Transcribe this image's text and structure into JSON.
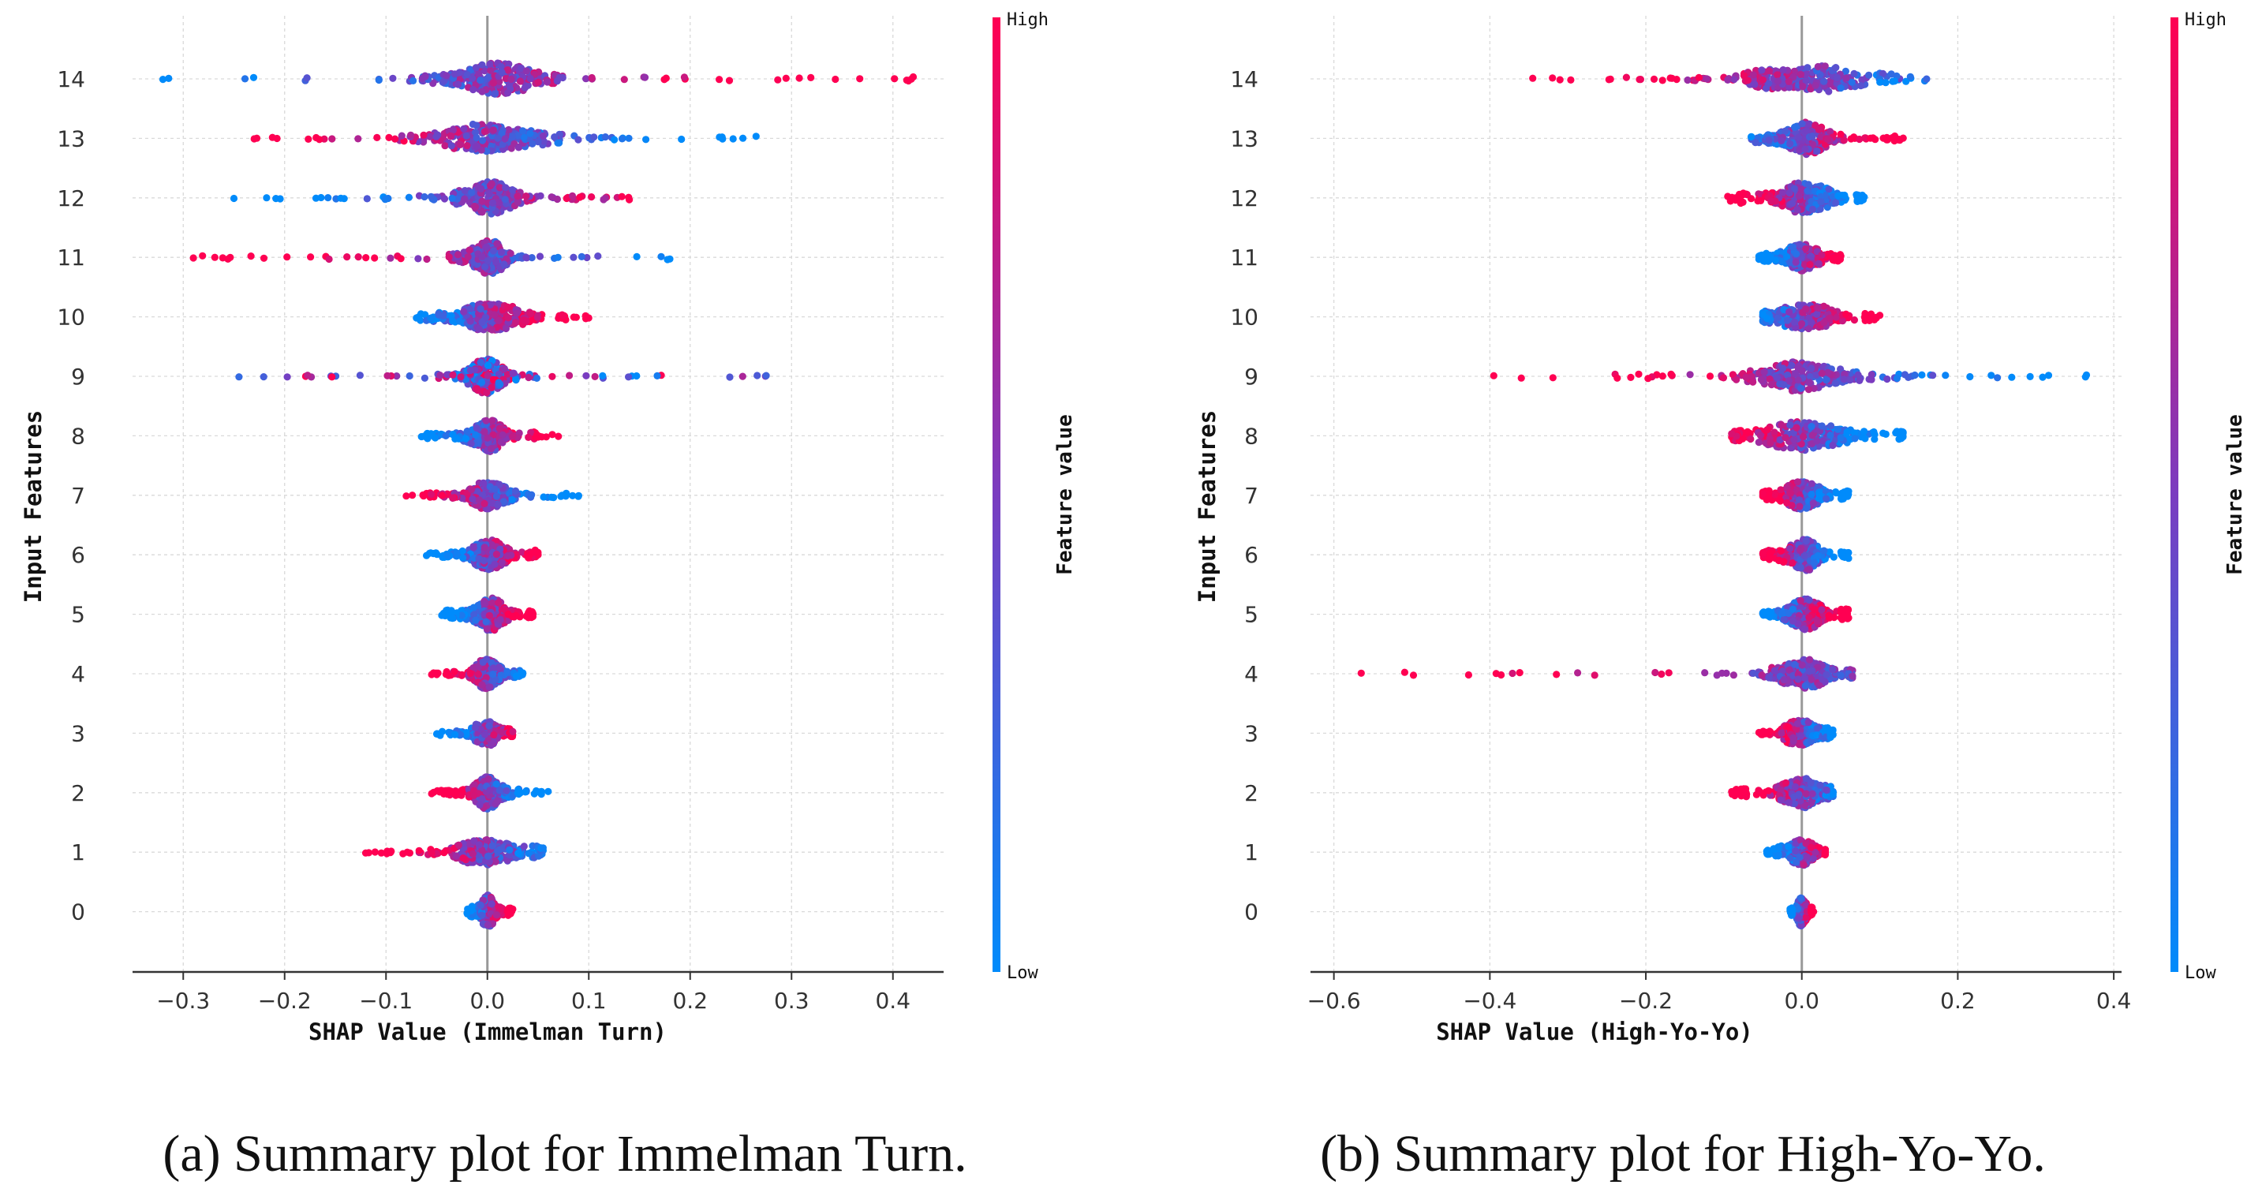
{
  "chart_data": [
    {
      "type": "scatter",
      "subtype": "shap-beeswarm-summary",
      "caption_letter": "(a)",
      "caption_rest": " Summary plot for Immelman Turn.",
      "xlabel": "SHAP Value (Immelman Turn)",
      "ylabel": "Input Features",
      "xlim": [
        -0.35,
        0.45
      ],
      "xticks": [
        -0.3,
        -0.2,
        -0.1,
        0.0,
        0.1,
        0.2,
        0.3,
        0.4
      ],
      "xtick_labels": [
        "−0.3",
        "−0.2",
        "−0.1",
        "0.0",
        "0.1",
        "0.2",
        "0.3",
        "0.4"
      ],
      "features": [
        "14",
        "13",
        "12",
        "11",
        "10",
        "9",
        "8",
        "7",
        "6",
        "5",
        "4",
        "3",
        "2",
        "1",
        "0"
      ],
      "grid": true,
      "colorbar": {
        "title": "Feature value",
        "high": "High",
        "low": "Low",
        "high_color": "#ff0052",
        "low_color": "#008bfb"
      },
      "feature_spread": [
        {
          "feature": "14",
          "min": -0.32,
          "max": 0.42,
          "core": [
            -0.06,
            0.1
          ],
          "low_side": "negative"
        },
        {
          "feature": "13",
          "min": -0.23,
          "max": 0.265,
          "core": [
            -0.07,
            0.1
          ],
          "low_side": "positive"
        },
        {
          "feature": "12",
          "min": -0.25,
          "max": 0.14,
          "core": [
            -0.05,
            0.06
          ],
          "low_side": "negative"
        },
        {
          "feature": "11",
          "min": -0.29,
          "max": 0.18,
          "core": [
            -0.05,
            0.03
          ],
          "low_side": "positive"
        },
        {
          "feature": "10",
          "min": -0.07,
          "max": 0.1,
          "core": [
            -0.04,
            0.07
          ],
          "low_side": "negative"
        },
        {
          "feature": "9",
          "min": -0.245,
          "max": 0.275,
          "core": [
            -0.04,
            0.04
          ],
          "low_side": "mixed"
        },
        {
          "feature": "8",
          "min": -0.065,
          "max": 0.07,
          "core": [
            -0.03,
            0.04
          ],
          "low_side": "negative"
        },
        {
          "feature": "7",
          "min": -0.08,
          "max": 0.09,
          "core": [
            -0.03,
            0.04
          ],
          "low_side": "positive"
        },
        {
          "feature": "6",
          "min": -0.06,
          "max": 0.05,
          "core": [
            -0.03,
            0.04
          ],
          "low_side": "negative"
        },
        {
          "feature": "5",
          "min": -0.045,
          "max": 0.045,
          "core": [
            -0.03,
            0.04
          ],
          "low_side": "negative"
        },
        {
          "feature": "4",
          "min": -0.055,
          "max": 0.035,
          "core": [
            -0.025,
            0.025
          ],
          "low_side": "positive"
        },
        {
          "feature": "3",
          "min": -0.05,
          "max": 0.025,
          "core": [
            -0.02,
            0.02
          ],
          "low_side": "negative"
        },
        {
          "feature": "2",
          "min": -0.055,
          "max": 0.06,
          "core": [
            -0.03,
            0.03
          ],
          "low_side": "positive"
        },
        {
          "feature": "1",
          "min": -0.12,
          "max": 0.055,
          "core": [
            -0.05,
            0.05
          ],
          "low_side": "positive"
        },
        {
          "feature": "0",
          "min": -0.02,
          "max": 0.025,
          "core": [
            -0.015,
            0.02
          ],
          "low_side": "negative"
        }
      ]
    },
    {
      "type": "scatter",
      "subtype": "shap-beeswarm-summary",
      "caption_letter": "(b)",
      "caption_rest": " Summary plot for High-Yo-Yo.",
      "xlabel": "SHAP Value (High-Yo-Yo)",
      "ylabel": "Input Features",
      "xlim": [
        -0.63,
        0.41
      ],
      "xticks": [
        -0.6,
        -0.4,
        -0.2,
        0.0,
        0.2,
        0.4
      ],
      "xtick_labels": [
        "−0.6",
        "−0.4",
        "−0.2",
        "0.0",
        "0.2",
        "0.4"
      ],
      "features": [
        "14",
        "13",
        "12",
        "11",
        "10",
        "9",
        "8",
        "7",
        "6",
        "5",
        "4",
        "3",
        "2",
        "1",
        "0"
      ],
      "grid": true,
      "colorbar": {
        "title": "Feature value",
        "high": "High",
        "low": "Low",
        "high_color": "#ff0052",
        "low_color": "#008bfb"
      },
      "feature_spread": [
        {
          "feature": "14",
          "min": -0.345,
          "max": 0.16,
          "core": [
            -0.12,
            0.1
          ],
          "low_side": "positive"
        },
        {
          "feature": "13",
          "min": -0.065,
          "max": 0.13,
          "core": [
            -0.04,
            0.08
          ],
          "low_side": "negative"
        },
        {
          "feature": "12",
          "min": -0.095,
          "max": 0.08,
          "core": [
            -0.07,
            0.07
          ],
          "low_side": "positive"
        },
        {
          "feature": "11",
          "min": -0.055,
          "max": 0.05,
          "core": [
            -0.04,
            0.04
          ],
          "low_side": "negative"
        },
        {
          "feature": "10",
          "min": -0.05,
          "max": 0.1,
          "core": [
            -0.04,
            0.08
          ],
          "low_side": "negative"
        },
        {
          "feature": "9",
          "min": -0.395,
          "max": 0.365,
          "core": [
            -0.1,
            0.1
          ],
          "low_side": "positive"
        },
        {
          "feature": "8",
          "min": -0.09,
          "max": 0.13,
          "core": [
            -0.08,
            0.12
          ],
          "low_side": "positive"
        },
        {
          "feature": "7",
          "min": -0.05,
          "max": 0.06,
          "core": [
            -0.04,
            0.05
          ],
          "low_side": "positive"
        },
        {
          "feature": "6",
          "min": -0.05,
          "max": 0.06,
          "core": [
            -0.04,
            0.05
          ],
          "low_side": "positive"
        },
        {
          "feature": "5",
          "min": -0.05,
          "max": 0.06,
          "core": [
            -0.04,
            0.05
          ],
          "low_side": "negative"
        },
        {
          "feature": "4",
          "min": -0.565,
          "max": 0.065,
          "core": [
            -0.06,
            0.06
          ],
          "low_side": "positive"
        },
        {
          "feature": "3",
          "min": -0.055,
          "max": 0.04,
          "core": [
            -0.04,
            0.03
          ],
          "low_side": "positive"
        },
        {
          "feature": "2",
          "min": -0.09,
          "max": 0.04,
          "core": [
            -0.07,
            0.03
          ],
          "low_side": "positive"
        },
        {
          "feature": "1",
          "min": -0.045,
          "max": 0.03,
          "core": [
            -0.03,
            0.03
          ],
          "low_side": "negative"
        },
        {
          "feature": "0",
          "min": -0.015,
          "max": 0.015,
          "core": [
            -0.012,
            0.012
          ],
          "low_side": "negative"
        }
      ]
    }
  ]
}
